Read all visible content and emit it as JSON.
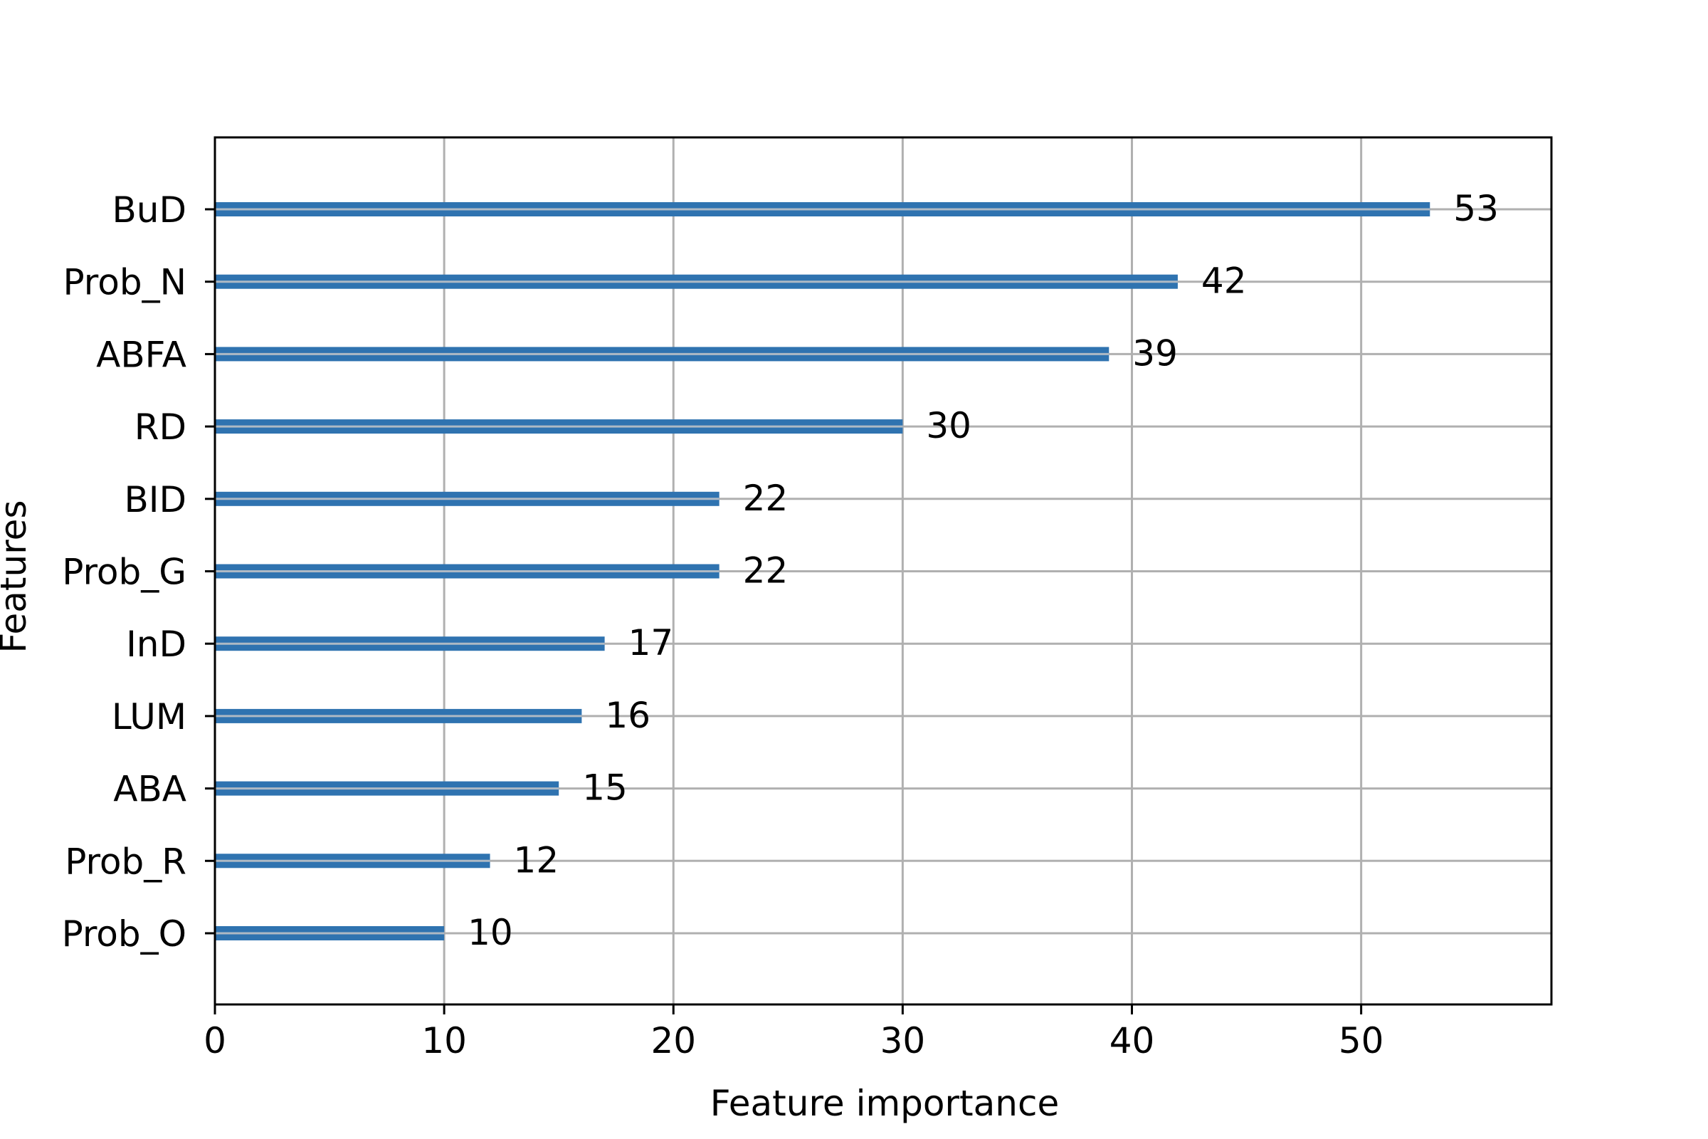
{
  "chart_data": {
    "type": "bar",
    "orientation": "horizontal",
    "title": "",
    "xlabel": "Feature importance",
    "ylabel": "Features",
    "categories": [
      "BuD",
      "Prob_N",
      "ABFA",
      "RD",
      "BID",
      "Prob_G",
      "InD",
      "LUM",
      "ABA",
      "Prob_R",
      "Prob_O"
    ],
    "values": [
      53,
      42,
      39,
      30,
      22,
      22,
      17,
      16,
      15,
      12,
      10
    ],
    "xlim": [
      0,
      58.3
    ],
    "xticks": [
      0,
      10,
      20,
      30,
      40,
      50
    ],
    "grid": true,
    "legend": "none",
    "colors": {
      "bar": "#2f73b0",
      "bar_highlight": "#aeb9c4",
      "grid": "#b0b0b0",
      "axes": "#000000"
    }
  }
}
